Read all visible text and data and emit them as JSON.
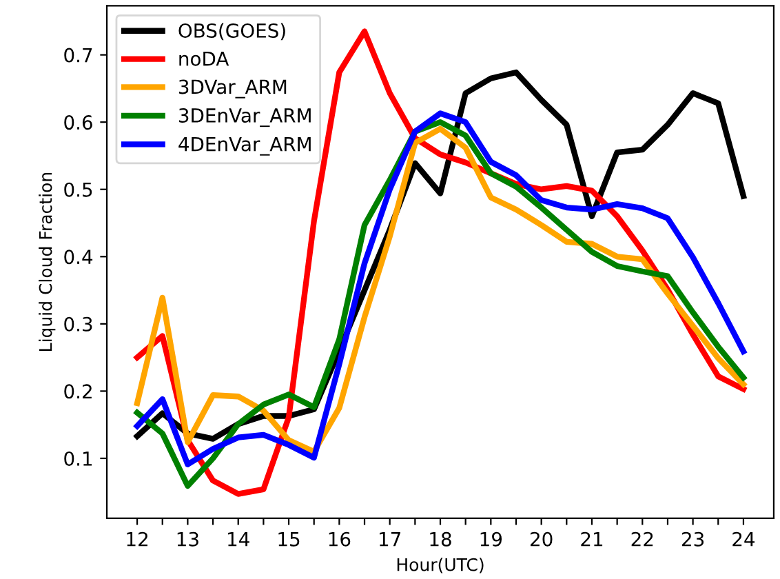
{
  "chart_data": {
    "type": "line",
    "xlabel": "Hour(UTC)",
    "ylabel": "Liquid Cloud Fraction",
    "x": [
      12,
      12.5,
      13,
      13.5,
      14,
      14.5,
      15,
      15.5,
      16,
      16.5,
      17,
      17.5,
      18,
      18.5,
      19,
      19.5,
      20,
      20.5,
      21,
      21.5,
      22,
      22.5,
      23,
      23.5,
      24
    ],
    "series": [
      {
        "name": "OBS(GOES)",
        "color": "#000000",
        "values": [
          0.133,
          0.167,
          0.137,
          0.129,
          0.151,
          0.163,
          0.163,
          0.173,
          0.26,
          0.35,
          0.44,
          0.539,
          0.494,
          0.643,
          0.665,
          0.674,
          0.633,
          0.596,
          0.46,
          0.555,
          0.559,
          0.596,
          0.643,
          0.628,
          0.49
        ]
      },
      {
        "name": "noDA",
        "color": "#ff0000",
        "values": [
          0.25,
          0.282,
          0.127,
          0.067,
          0.047,
          0.054,
          0.161,
          0.453,
          0.674,
          0.735,
          0.643,
          0.576,
          0.552,
          0.54,
          0.524,
          0.508,
          0.5,
          0.505,
          0.498,
          0.46,
          0.409,
          0.351,
          0.284,
          0.222,
          0.203
        ]
      },
      {
        "name": "3DVar_ARM",
        "color": "#ffa500",
        "values": [
          0.182,
          0.339,
          0.124,
          0.194,
          0.192,
          0.171,
          0.127,
          0.11,
          0.175,
          0.31,
          0.43,
          0.569,
          0.59,
          0.562,
          0.488,
          0.47,
          0.447,
          0.422,
          0.419,
          0.4,
          0.396,
          0.345,
          0.297,
          0.249,
          0.21
        ]
      },
      {
        "name": "3DEnVar_ARM",
        "color": "#008000",
        "values": [
          0.168,
          0.137,
          0.059,
          0.1,
          0.151,
          0.18,
          0.195,
          0.176,
          0.277,
          0.447,
          0.514,
          0.586,
          0.6,
          0.58,
          0.524,
          0.504,
          0.473,
          0.44,
          0.407,
          0.386,
          0.378,
          0.371,
          0.317,
          0.266,
          0.22
        ]
      },
      {
        "name": "4DEnVar_ARM",
        "color": "#0000ff",
        "values": [
          0.148,
          0.188,
          0.091,
          0.114,
          0.131,
          0.135,
          0.12,
          0.101,
          0.24,
          0.39,
          0.5,
          0.586,
          0.613,
          0.6,
          0.541,
          0.521,
          0.484,
          0.473,
          0.47,
          0.478,
          0.472,
          0.457,
          0.399,
          0.331,
          0.259
        ]
      }
    ],
    "xlim": [
      11.4,
      24.6
    ],
    "ylim": [
      0.011,
      0.773
    ],
    "xticks": [
      12,
      {
        "value": 12.5,
        "label": null
      },
      13,
      {
        "value": 13.5,
        "label": null
      },
      14,
      {
        "value": 14.5,
        "label": null
      },
      15,
      {
        "value": 15.5,
        "label": null
      },
      16,
      {
        "value": 16.5,
        "label": null
      },
      17,
      {
        "value": 17.5,
        "label": null
      },
      18,
      {
        "value": 18.5,
        "label": null
      },
      19,
      {
        "value": 19.5,
        "label": null
      },
      20,
      {
        "value": 20.5,
        "label": null
      },
      21,
      {
        "value": 21.5,
        "label": null
      },
      22,
      {
        "value": 22.5,
        "label": null
      },
      23,
      {
        "value": 23.5,
        "label": null
      },
      24
    ],
    "yticks": [
      0.1,
      0.2,
      0.3,
      0.4,
      0.5,
      0.6,
      0.7
    ],
    "grid": false,
    "legend": "top left",
    "line_style": "solid",
    "marker": "none"
  }
}
